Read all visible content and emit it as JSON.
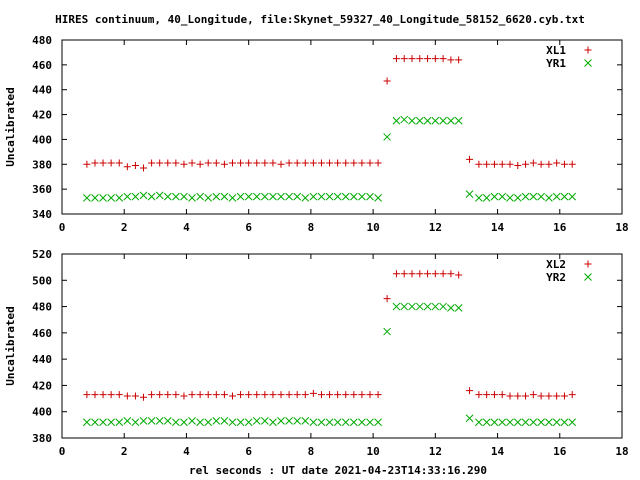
{
  "title": "HIRES continuum, 40_Longitude, file:Skynet_59327_40_Longitude_58152_6620.cyb.txt",
  "xlabel": "rel seconds : UT date 2021-04-23T14:33:16.290",
  "colors": {
    "series1": "#cc0000",
    "series2": "#00aa00",
    "axis": "#000000"
  },
  "chart_data": [
    {
      "type": "scatter",
      "ylabel": "Uncalibrated",
      "xlim": [
        0,
        18
      ],
      "ylim": [
        340,
        480
      ],
      "xticks": [
        0,
        2,
        4,
        6,
        8,
        10,
        12,
        14,
        16,
        18
      ],
      "yticks": [
        340,
        360,
        380,
        400,
        420,
        440,
        460,
        480
      ],
      "legend_position": "top-right",
      "series": [
        {
          "name": "XL1",
          "marker": "plus",
          "x": [
            0.8,
            1.06,
            1.32,
            1.58,
            1.84,
            2.1,
            2.36,
            2.62,
            2.88,
            3.14,
            3.4,
            3.66,
            3.92,
            4.18,
            4.44,
            4.7,
            4.96,
            5.22,
            5.48,
            5.74,
            6.0,
            6.26,
            6.52,
            6.78,
            7.04,
            7.3,
            7.56,
            7.82,
            8.08,
            8.34,
            8.6,
            8.86,
            9.12,
            9.38,
            9.64,
            9.9,
            10.16,
            10.45,
            10.75,
            11.0,
            11.25,
            11.5,
            11.75,
            12.0,
            12.25,
            12.5,
            12.75,
            13.1,
            13.4,
            13.65,
            13.9,
            14.15,
            14.4,
            14.65,
            14.9,
            15.15,
            15.4,
            15.65,
            15.9,
            16.15,
            16.4
          ],
          "y": [
            380,
            381,
            381,
            381,
            381,
            378,
            379,
            377,
            381,
            381,
            381,
            381,
            380,
            381,
            380,
            381,
            381,
            380,
            381,
            381,
            381,
            381,
            381,
            381,
            380,
            381,
            381,
            381,
            381,
            381,
            381,
            381,
            381,
            381,
            381,
            381,
            381,
            447,
            465,
            465,
            465,
            465,
            465,
            465,
            465,
            464,
            464,
            384,
            380,
            380,
            380,
            380,
            380,
            379,
            380,
            381,
            380,
            380,
            381,
            380,
            380
          ]
        },
        {
          "name": "YR1",
          "marker": "cross",
          "x": [
            0.8,
            1.06,
            1.32,
            1.58,
            1.84,
            2.1,
            2.36,
            2.62,
            2.88,
            3.14,
            3.4,
            3.66,
            3.92,
            4.18,
            4.44,
            4.7,
            4.96,
            5.22,
            5.48,
            5.74,
            6.0,
            6.26,
            6.52,
            6.78,
            7.04,
            7.3,
            7.56,
            7.82,
            8.08,
            8.34,
            8.6,
            8.86,
            9.12,
            9.38,
            9.64,
            9.9,
            10.16,
            10.45,
            10.75,
            11.0,
            11.25,
            11.5,
            11.75,
            12.0,
            12.25,
            12.5,
            12.75,
            13.1,
            13.4,
            13.65,
            13.9,
            14.15,
            14.4,
            14.65,
            14.9,
            15.15,
            15.4,
            15.65,
            15.9,
            16.15,
            16.4
          ],
          "y": [
            353,
            353,
            353,
            353,
            353,
            354,
            354,
            355,
            354,
            355,
            354,
            354,
            354,
            353,
            354,
            353,
            354,
            354,
            353,
            354,
            354,
            354,
            354,
            354,
            354,
            354,
            354,
            353,
            354,
            354,
            354,
            354,
            354,
            354,
            354,
            354,
            353,
            402,
            415,
            416,
            415,
            415,
            415,
            415,
            415,
            415,
            415,
            356,
            353,
            353,
            354,
            354,
            353,
            353,
            354,
            354,
            354,
            353,
            354,
            354,
            354
          ]
        }
      ]
    },
    {
      "type": "scatter",
      "ylabel": "Uncalibrated",
      "xlim": [
        0,
        18
      ],
      "ylim": [
        380,
        520
      ],
      "xticks": [
        0,
        2,
        4,
        6,
        8,
        10,
        12,
        14,
        16,
        18
      ],
      "yticks": [
        380,
        400,
        420,
        440,
        460,
        480,
        500,
        520
      ],
      "legend_position": "top-right",
      "series": [
        {
          "name": "XL2",
          "marker": "plus",
          "x": [
            0.8,
            1.06,
            1.32,
            1.58,
            1.84,
            2.1,
            2.36,
            2.62,
            2.88,
            3.14,
            3.4,
            3.66,
            3.92,
            4.18,
            4.44,
            4.7,
            4.96,
            5.22,
            5.48,
            5.74,
            6.0,
            6.26,
            6.52,
            6.78,
            7.04,
            7.3,
            7.56,
            7.82,
            8.08,
            8.34,
            8.6,
            8.86,
            9.12,
            9.38,
            9.64,
            9.9,
            10.16,
            10.45,
            10.75,
            11.0,
            11.25,
            11.5,
            11.75,
            12.0,
            12.25,
            12.5,
            12.75,
            13.1,
            13.4,
            13.65,
            13.9,
            14.15,
            14.4,
            14.65,
            14.9,
            15.15,
            15.4,
            15.65,
            15.9,
            16.15,
            16.4
          ],
          "y": [
            413,
            413,
            413,
            413,
            413,
            412,
            412,
            411,
            413,
            413,
            413,
            413,
            412,
            413,
            413,
            413,
            413,
            413,
            412,
            413,
            413,
            413,
            413,
            413,
            413,
            413,
            413,
            413,
            414,
            413,
            413,
            413,
            413,
            413,
            413,
            413,
            413,
            486,
            505,
            505,
            505,
            505,
            505,
            505,
            505,
            505,
            504,
            416,
            413,
            413,
            413,
            413,
            412,
            412,
            412,
            413,
            412,
            412,
            412,
            412,
            413
          ],
          "_note": "values estimated from plot"
        },
        {
          "name": "YR2",
          "marker": "cross",
          "x": [
            0.8,
            1.06,
            1.32,
            1.58,
            1.84,
            2.1,
            2.36,
            2.62,
            2.88,
            3.14,
            3.4,
            3.66,
            3.92,
            4.18,
            4.44,
            4.7,
            4.96,
            5.22,
            5.48,
            5.74,
            6.0,
            6.26,
            6.52,
            6.78,
            7.04,
            7.3,
            7.56,
            7.82,
            8.08,
            8.34,
            8.6,
            8.86,
            9.12,
            9.38,
            9.64,
            9.9,
            10.16,
            10.45,
            10.75,
            11.0,
            11.25,
            11.5,
            11.75,
            12.0,
            12.25,
            12.5,
            12.75,
            13.1,
            13.4,
            13.65,
            13.9,
            14.15,
            14.4,
            14.65,
            14.9,
            15.15,
            15.4,
            15.65,
            15.9,
            16.15,
            16.4
          ],
          "y": [
            392,
            392,
            392,
            392,
            392,
            393,
            392,
            393,
            393,
            393,
            393,
            392,
            392,
            393,
            392,
            392,
            393,
            393,
            392,
            392,
            392,
            393,
            393,
            392,
            393,
            393,
            393,
            393,
            392,
            392,
            392,
            392,
            392,
            392,
            392,
            392,
            392,
            461,
            480,
            480,
            480,
            480,
            480,
            480,
            480,
            479,
            479,
            395,
            392,
            392,
            392,
            392,
            392,
            392,
            392,
            392,
            392,
            392,
            392,
            392,
            392
          ]
        }
      ]
    }
  ]
}
